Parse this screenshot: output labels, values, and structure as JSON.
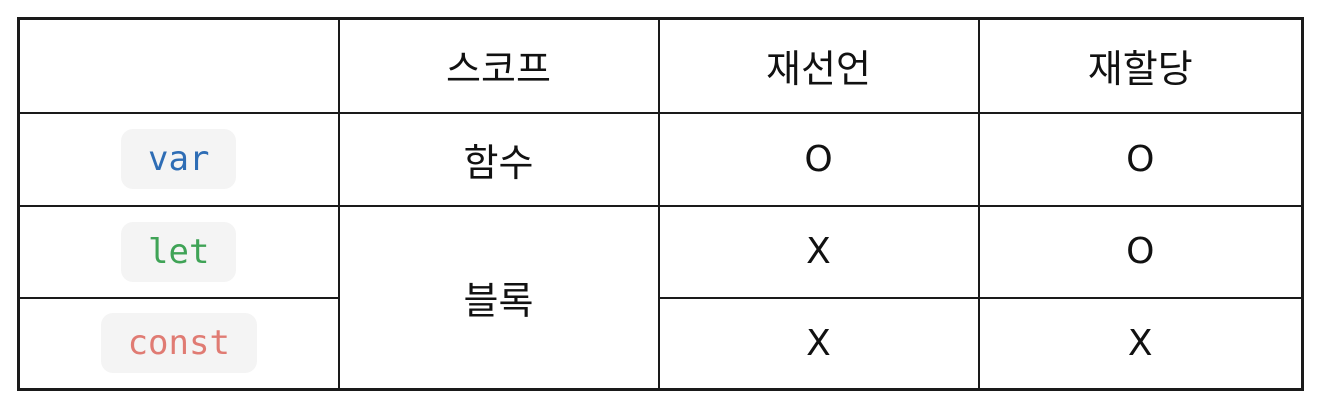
{
  "table": {
    "headers": [
      "",
      "스코프",
      "재선언",
      "재할당"
    ],
    "rows": [
      {
        "keyword": "var",
        "keyword_color": "#2e6db5",
        "scope": "함수",
        "redeclare": "O",
        "reassign": "O"
      },
      {
        "keyword": "let",
        "keyword_color": "#3fa356",
        "scope": "블록",
        "redeclare": "X",
        "reassign": "O"
      },
      {
        "keyword": "const",
        "keyword_color": "#e07b73",
        "redeclare": "X",
        "reassign": "X"
      }
    ]
  },
  "colors": {
    "border": "#1a1a1a",
    "keyword_background": "#f4f4f4"
  }
}
